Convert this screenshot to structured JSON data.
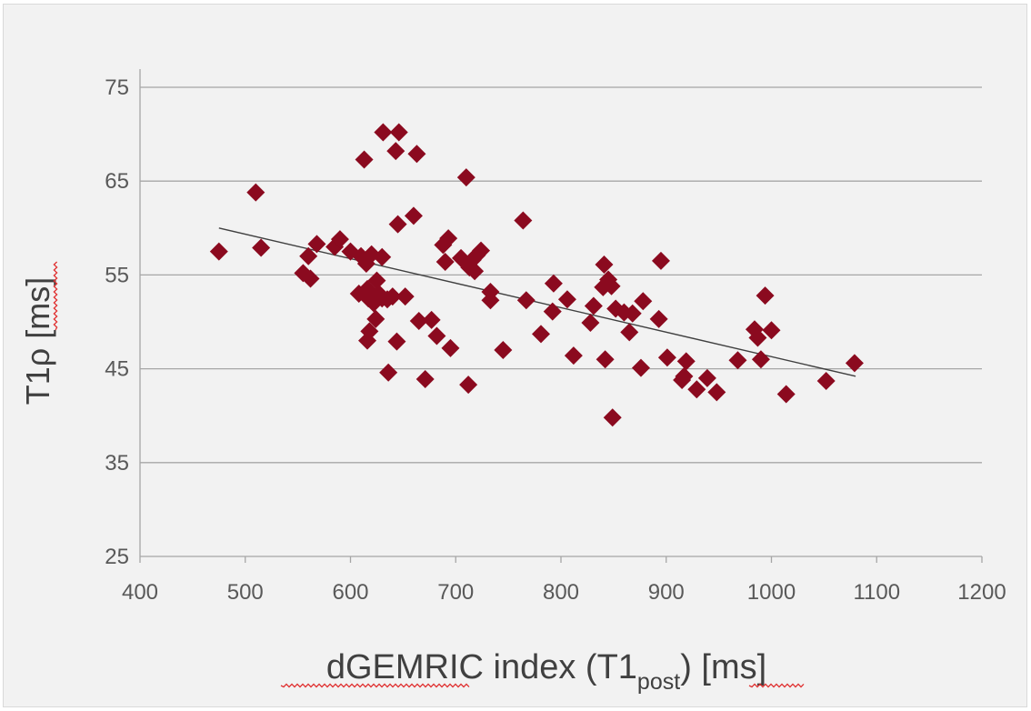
{
  "chart_data": {
    "type": "scatter",
    "title": "",
    "xlabel": "dGEMRIC index (T1post) [ms]",
    "xlabel_parts": {
      "main": "dGEMRIC index (T1",
      "sub": "post",
      "tail": ") [ms]"
    },
    "ylabel": "T1ρ [ms]",
    "xlim": [
      400,
      1200
    ],
    "ylim": [
      25,
      75
    ],
    "x_ticks": [
      400,
      500,
      600,
      700,
      800,
      900,
      1000,
      1100,
      1200
    ],
    "y_ticks": [
      25,
      35,
      45,
      55,
      65,
      75
    ],
    "grid": "horizontal",
    "marker": "diamond",
    "marker_color": "#8b0a1f",
    "trendline": {
      "type": "linear",
      "x": [
        475,
        1080
      ],
      "y": [
        60.0,
        44.2
      ],
      "color": "#404040"
    },
    "series": [
      {
        "points": [
          [
            475,
            57.5
          ],
          [
            510,
            63.8
          ],
          [
            515,
            57.9
          ],
          [
            555,
            55.2
          ],
          [
            560,
            57.0
          ],
          [
            562,
            54.6
          ],
          [
            568,
            58.3
          ],
          [
            585,
            58.0
          ],
          [
            590,
            58.8
          ],
          [
            600,
            57.5
          ],
          [
            608,
            53.0
          ],
          [
            610,
            57.0
          ],
          [
            613,
            67.3
          ],
          [
            615,
            56.2
          ],
          [
            616,
            53.5
          ],
          [
            617,
            52.5
          ],
          [
            618,
            49.0
          ],
          [
            616,
            48.0
          ],
          [
            620,
            57.2
          ],
          [
            622,
            52.0
          ],
          [
            624,
            50.3
          ],
          [
            625,
            54.4
          ],
          [
            627,
            53.0
          ],
          [
            630,
            52.5
          ],
          [
            630,
            56.9
          ],
          [
            631,
            70.2
          ],
          [
            635,
            52.4
          ],
          [
            636,
            44.6
          ],
          [
            640,
            52.7
          ],
          [
            643,
            68.2
          ],
          [
            644,
            47.9
          ],
          [
            645,
            60.4
          ],
          [
            646,
            70.2
          ],
          [
            652,
            52.7
          ],
          [
            660,
            61.3
          ],
          [
            663,
            67.9
          ],
          [
            665,
            50.1
          ],
          [
            671,
            43.9
          ],
          [
            677,
            50.2
          ],
          [
            682,
            48.5
          ],
          [
            688,
            58.2
          ],
          [
            690,
            56.4
          ],
          [
            693,
            58.9
          ],
          [
            695,
            47.2
          ],
          [
            705,
            56.8
          ],
          [
            710,
            65.4
          ],
          [
            712,
            43.3
          ],
          [
            713,
            55.8
          ],
          [
            716,
            56.6
          ],
          [
            718,
            55.4
          ],
          [
            720,
            57.1
          ],
          [
            724,
            57.6
          ],
          [
            733,
            53.2
          ],
          [
            733,
            52.3
          ],
          [
            745,
            47.0
          ],
          [
            764,
            60.8
          ],
          [
            767,
            52.3
          ],
          [
            781,
            48.7
          ],
          [
            792,
            51.1
          ],
          [
            793,
            54.1
          ],
          [
            806,
            52.4
          ],
          [
            812,
            46.4
          ],
          [
            828,
            49.9
          ],
          [
            831,
            51.7
          ],
          [
            840,
            53.7
          ],
          [
            841,
            56.1
          ],
          [
            842,
            46.0
          ],
          [
            845,
            54.5
          ],
          [
            848,
            53.8
          ],
          [
            849,
            39.8
          ],
          [
            852,
            51.4
          ],
          [
            860,
            51.0
          ],
          [
            865,
            48.9
          ],
          [
            868,
            50.9
          ],
          [
            876,
            45.1
          ],
          [
            878,
            52.2
          ],
          [
            893,
            50.3
          ],
          [
            895,
            56.5
          ],
          [
            901,
            46.2
          ],
          [
            915,
            43.8
          ],
          [
            917,
            44.2
          ],
          [
            919,
            45.8
          ],
          [
            929,
            42.8
          ],
          [
            939,
            44.0
          ],
          [
            948,
            42.5
          ],
          [
            968,
            45.9
          ],
          [
            984,
            49.2
          ],
          [
            987,
            48.3
          ],
          [
            990,
            46.0
          ],
          [
            994,
            52.8
          ],
          [
            1000,
            49.1
          ],
          [
            1014,
            42.3
          ],
          [
            1052,
            43.7
          ],
          [
            1079,
            45.6
          ]
        ]
      }
    ]
  }
}
